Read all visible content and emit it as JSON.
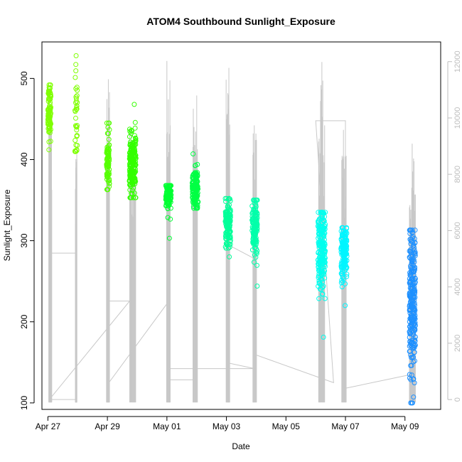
{
  "chart_data": {
    "type": "scatter",
    "title": "ATOM4 Southbound Sunlight_Exposure",
    "xlabel": "Date",
    "ylabel": "Sunlight_Exposure",
    "xlim": [
      -0.2,
      13.2
    ],
    "ylim": [
      92,
      545
    ],
    "y_ticks": [
      100,
      200,
      300,
      400,
      500
    ],
    "x_ticks": [
      {
        "day": 0,
        "label": "Apr 27"
      },
      {
        "day": 2,
        "label": "Apr 29"
      },
      {
        "day": 4,
        "label": "May 01"
      },
      {
        "day": 6,
        "label": "May 03"
      },
      {
        "day": 8,
        "label": "May 05"
      },
      {
        "day": 10,
        "label": "May 07"
      },
      {
        "day": 12,
        "label": "May 09"
      }
    ],
    "secondary_axis": {
      "color": "#bdbdbd",
      "ylim": [
        -350,
        12700
      ],
      "ticks": [
        0,
        2000,
        4000,
        6000,
        8000,
        10000,
        12000
      ]
    },
    "clusters": [
      {
        "day": 0.05,
        "width": 0.1,
        "min": 412,
        "max": 492,
        "mean": 458,
        "sd": 16,
        "n": 90,
        "color": "#7fff00"
      },
      {
        "day": 0.95,
        "width": 0.08,
        "min": 410,
        "max": 528,
        "mean": 450,
        "sd": 35,
        "n": 40,
        "color": "#7fff00"
      },
      {
        "day": 2.02,
        "width": 0.1,
        "min": 363,
        "max": 445,
        "mean": 398,
        "sd": 18,
        "n": 80,
        "color": "#55ff00"
      },
      {
        "day": 2.85,
        "width": 0.22,
        "min": 353,
        "max": 468,
        "mean": 393,
        "sd": 19,
        "n": 200,
        "color": "#33ff00"
      },
      {
        "day": 4.05,
        "width": 0.18,
        "min": 303,
        "max": 368,
        "mean": 355,
        "sd": 10,
        "n": 110,
        "color": "#00ff33"
      },
      {
        "day": 4.95,
        "width": 0.2,
        "min": 340,
        "max": 407,
        "mean": 364,
        "sd": 12,
        "n": 140,
        "color": "#00ff44"
      },
      {
        "day": 6.05,
        "width": 0.18,
        "min": 280,
        "max": 352,
        "mean": 320,
        "sd": 14,
        "n": 140,
        "color": "#00ff99"
      },
      {
        "day": 6.95,
        "width": 0.18,
        "min": 244,
        "max": 350,
        "mean": 318,
        "sd": 17,
        "n": 140,
        "color": "#00ffaa"
      },
      {
        "day": 9.2,
        "width": 0.25,
        "min": 181,
        "max": 335,
        "mean": 285,
        "sd": 28,
        "n": 200,
        "color": "#00ffee"
      },
      {
        "day": 9.95,
        "width": 0.2,
        "min": 220,
        "max": 316,
        "mean": 285,
        "sd": 16,
        "n": 160,
        "color": "#00f5ff"
      },
      {
        "day": 12.25,
        "width": 0.2,
        "min": 100,
        "max": 313,
        "mean": 225,
        "sd": 45,
        "n": 260,
        "color": "#1e90ff"
      }
    ]
  }
}
